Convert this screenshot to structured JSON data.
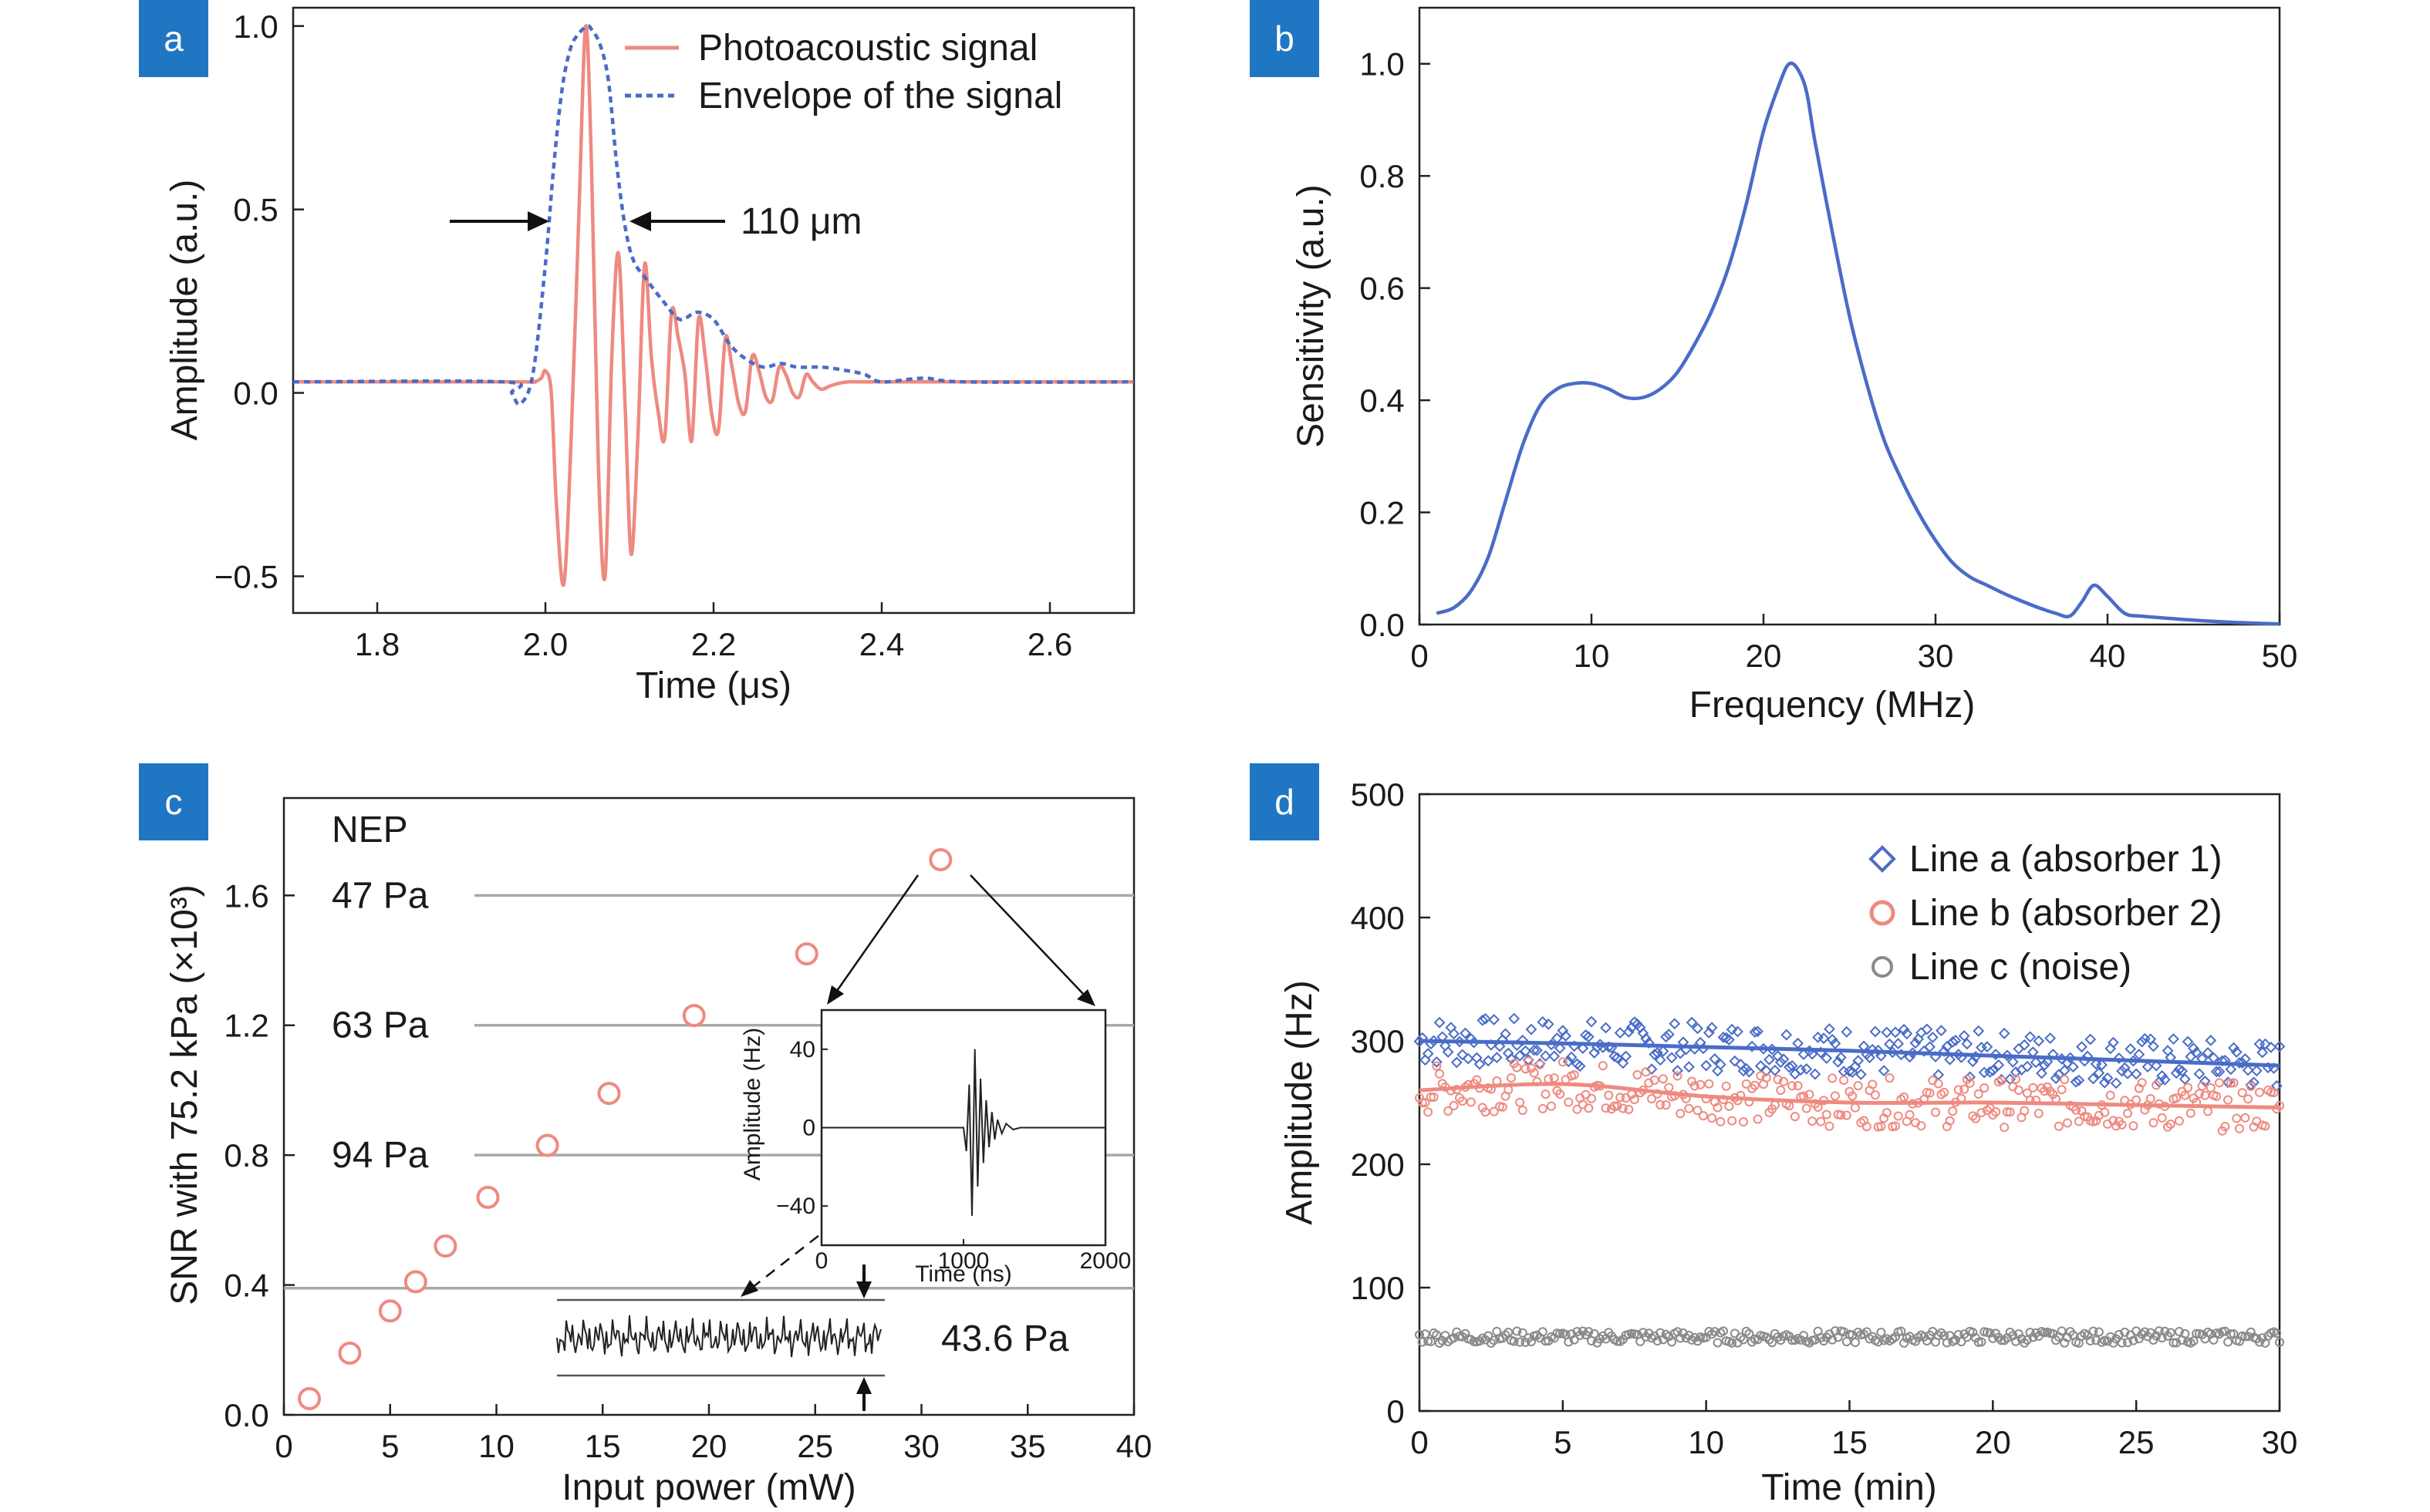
{
  "colors": {
    "signal": "#ee8a80",
    "envelope": "#4a6cc8",
    "sensitivity": "#4a6cc8",
    "snr_marker": "#ee8a80",
    "nep_line": "#a8a8a8",
    "line_a": "#4a6cc8",
    "line_b": "#ee8a80",
    "line_c": "#8a8a8a",
    "badge": "#1f76c2"
  },
  "panels": {
    "a": {
      "badge": "a"
    },
    "b": {
      "badge": "b"
    },
    "c": {
      "badge": "c"
    },
    "d": {
      "badge": "d"
    }
  },
  "chart_data": [
    {
      "panel": "a",
      "type": "line",
      "xlabel": "Time (μs)",
      "ylabel": "Amplitude (a.u.)",
      "xlim": [
        1.7,
        2.7
      ],
      "ylim": [
        -0.6,
        1.05
      ],
      "xticks": [
        1.8,
        2.0,
        2.2,
        2.4,
        2.6
      ],
      "xticklabels": [
        "1.8",
        "2.0",
        "2.2",
        "2.4",
        "2.6"
      ],
      "yticks": [
        -0.5,
        0.0,
        0.5,
        1.0
      ],
      "yticklabels": [
        "−0.5",
        "0.0",
        "0.5",
        "1.0"
      ],
      "legend": [
        "Photoacoustic signal",
        "Envelope of the signal"
      ],
      "legend_position": "top-right",
      "annotation": "110 μm",
      "series": [
        {
          "name": "Photoacoustic signal",
          "style": "solid",
          "x": [
            1.7,
            1.96,
            1.985,
            1.995,
            2.0,
            2.007,
            2.013,
            2.022,
            2.031,
            2.04,
            2.048,
            2.055,
            2.063,
            2.071,
            2.079,
            2.087,
            2.095,
            2.102,
            2.11,
            2.118,
            2.126,
            2.134,
            2.142,
            2.15,
            2.158,
            2.166,
            2.174,
            2.182,
            2.19,
            2.198,
            2.206,
            2.214,
            2.222,
            2.23,
            2.238,
            2.246,
            2.254,
            2.262,
            2.27,
            2.278,
            2.286,
            2.294,
            2.302,
            2.31,
            2.318,
            2.328,
            2.34,
            2.36,
            2.4,
            2.7
          ],
          "y": [
            0.03,
            0.03,
            0.03,
            0.04,
            0.06,
            0.0,
            -0.3,
            -0.52,
            -0.1,
            0.5,
            1.0,
            0.6,
            -0.2,
            -0.5,
            0.1,
            0.38,
            -0.05,
            -0.44,
            -0.12,
            0.35,
            0.1,
            -0.05,
            -0.12,
            0.22,
            0.15,
            0.05,
            -0.13,
            0.2,
            0.1,
            -0.06,
            -0.1,
            0.15,
            0.07,
            -0.03,
            -0.05,
            0.1,
            0.06,
            -0.01,
            -0.02,
            0.07,
            0.05,
            0.0,
            -0.01,
            0.05,
            0.03,
            0.01,
            0.02,
            0.03,
            0.03,
            0.03
          ]
        },
        {
          "name": "Envelope of the signal",
          "style": "dotted",
          "x": [
            1.7,
            1.95,
            1.96,
            1.97,
            1.985,
            2.0,
            2.01,
            2.02,
            2.03,
            2.04,
            2.05,
            2.055,
            2.065,
            2.075,
            2.085,
            2.095,
            2.105,
            2.12,
            2.14,
            2.16,
            2.18,
            2.2,
            2.22,
            2.24,
            2.26,
            2.28,
            2.3,
            2.33,
            2.36,
            2.38,
            2.4,
            2.45,
            2.5,
            2.7
          ],
          "y": [
            0.03,
            0.03,
            0.0,
            -0.03,
            0.05,
            0.35,
            0.62,
            0.83,
            0.94,
            0.98,
            1.0,
            0.99,
            0.95,
            0.85,
            0.62,
            0.45,
            0.36,
            0.31,
            0.25,
            0.2,
            0.22,
            0.2,
            0.13,
            0.09,
            0.07,
            0.08,
            0.07,
            0.07,
            0.06,
            0.05,
            0.03,
            0.04,
            0.03,
            0.03
          ]
        }
      ]
    },
    {
      "panel": "b",
      "type": "line",
      "xlabel": "Frequency (MHz)",
      "ylabel": "Sensitivity (a.u.)",
      "xlim": [
        0,
        50
      ],
      "ylim": [
        0.0,
        1.1
      ],
      "xticks": [
        0,
        10,
        20,
        30,
        40,
        50
      ],
      "xticklabels": [
        "0",
        "10",
        "20",
        "30",
        "40",
        "50"
      ],
      "yticks": [
        0.0,
        0.2,
        0.4,
        0.6,
        0.8,
        1.0
      ],
      "yticklabels": [
        "0.0",
        "0.2",
        "0.4",
        "0.6",
        "0.8",
        "1.0"
      ],
      "series": [
        {
          "style": "solid",
          "x": [
            1,
            2,
            3,
            4,
            5,
            6,
            7,
            8,
            9,
            10,
            11,
            12,
            13,
            14,
            15,
            16,
            17,
            18,
            19,
            20,
            21,
            21.5,
            22,
            22.5,
            23,
            24,
            25,
            26,
            27,
            28,
            29,
            30,
            31,
            32,
            33,
            34,
            35,
            36,
            37,
            37.8,
            38.5,
            39.2,
            40,
            41,
            42,
            44,
            46,
            48,
            50
          ],
          "y": [
            0.02,
            0.03,
            0.06,
            0.12,
            0.22,
            0.32,
            0.39,
            0.42,
            0.43,
            0.43,
            0.42,
            0.405,
            0.405,
            0.42,
            0.45,
            0.5,
            0.56,
            0.64,
            0.75,
            0.88,
            0.97,
            1.0,
            0.99,
            0.95,
            0.86,
            0.7,
            0.55,
            0.43,
            0.33,
            0.26,
            0.2,
            0.15,
            0.11,
            0.085,
            0.07,
            0.055,
            0.042,
            0.03,
            0.02,
            0.015,
            0.04,
            0.07,
            0.05,
            0.02,
            0.015,
            0.01,
            0.006,
            0.003,
            0.001
          ]
        }
      ]
    },
    {
      "panel": "c",
      "type": "scatter",
      "xlabel": "Input power (mW)",
      "ylabel": "SNR with 75.2 kPa (×10³)",
      "xlim": [
        0,
        40
      ],
      "ylim": [
        0.0,
        1.9
      ],
      "xticks": [
        0,
        5,
        10,
        15,
        20,
        25,
        30,
        35,
        40
      ],
      "xticklabels": [
        "0",
        "5",
        "10",
        "15",
        "20",
        "25",
        "30",
        "35",
        "40"
      ],
      "yticks": [
        0.0,
        0.4,
        0.8,
        1.2,
        1.6
      ],
      "yticklabels": [
        "0.0",
        "0.4",
        "0.8",
        "1.2",
        "1.6"
      ],
      "series": [
        {
          "marker": "circle",
          "x": [
            1.2,
            3.1,
            5.0,
            6.2,
            7.6,
            9.6,
            12.4,
            15.3,
            19.3,
            24.6,
            30.9
          ],
          "y": [
            0.05,
            0.19,
            0.32,
            0.41,
            0.52,
            0.67,
            0.83,
            0.99,
            1.23,
            1.42,
            1.71
          ]
        }
      ],
      "nep_header": "NEP",
      "nep_lines": [
        {
          "label": "47 Pa",
          "y": 1.6
        },
        {
          "label": "63 Pa",
          "y": 1.2
        },
        {
          "label": "94 Pa",
          "y": 0.8
        },
        {
          "label": "43.6 Pa",
          "y": 0.39
        }
      ],
      "inset": {
        "type": "line",
        "xlabel": "Time (ns)",
        "ylabel": "Amplitude (Hz)",
        "xlim": [
          0,
          2000
        ],
        "ylim": [
          -60,
          60
        ],
        "xticks": [
          0,
          1000,
          2000
        ],
        "xticklabels": [
          "0",
          "1000",
          "2000"
        ],
        "yticks": [
          -40,
          0,
          40
        ],
        "yticklabels": [
          "−40",
          "0",
          "40"
        ],
        "x": [
          0,
          1000,
          1020,
          1040,
          1060,
          1080,
          1100,
          1120,
          1140,
          1160,
          1180,
          1200,
          1220,
          1240,
          1270,
          1300,
          1350,
          1400,
          2000
        ],
        "y": [
          0,
          0,
          -12,
          22,
          -45,
          40,
          -30,
          25,
          -18,
          14,
          -10,
          8,
          -6,
          4,
          -3,
          2,
          -1,
          0,
          0
        ]
      }
    },
    {
      "panel": "d",
      "type": "scatter",
      "xlabel": "Time (min)",
      "ylabel": "Amplitude (Hz)",
      "xlim": [
        0,
        30
      ],
      "ylim": [
        0,
        500
      ],
      "xticks": [
        0,
        5,
        10,
        15,
        20,
        25,
        30
      ],
      "xticklabels": [
        "0",
        "5",
        "10",
        "15",
        "20",
        "25",
        "30"
      ],
      "yticks": [
        0,
        100,
        200,
        300,
        400,
        500
      ],
      "yticklabels": [
        "0",
        "100",
        "200",
        "300",
        "400",
        "500"
      ],
      "legend_position": "top-right",
      "series": [
        {
          "name": "Line a (absorber 1)",
          "marker": "diamond",
          "trend_x": [
            0,
            5,
            10,
            15,
            20,
            25,
            30
          ],
          "trend_y": [
            300,
            298,
            295,
            292,
            288,
            284,
            280
          ],
          "spread": 20
        },
        {
          "name": "Line b (absorber 2)",
          "marker": "circle",
          "trend_x": [
            0,
            5,
            10,
            15,
            20,
            25,
            30
          ],
          "trend_y": [
            260,
            265,
            255,
            250,
            250,
            248,
            246
          ],
          "spread": 20
        },
        {
          "name": "Line c (noise)",
          "marker": "circle",
          "trend_x": [
            0,
            30
          ],
          "trend_y": [
            60,
            60
          ],
          "spread": 5
        }
      ]
    }
  ]
}
